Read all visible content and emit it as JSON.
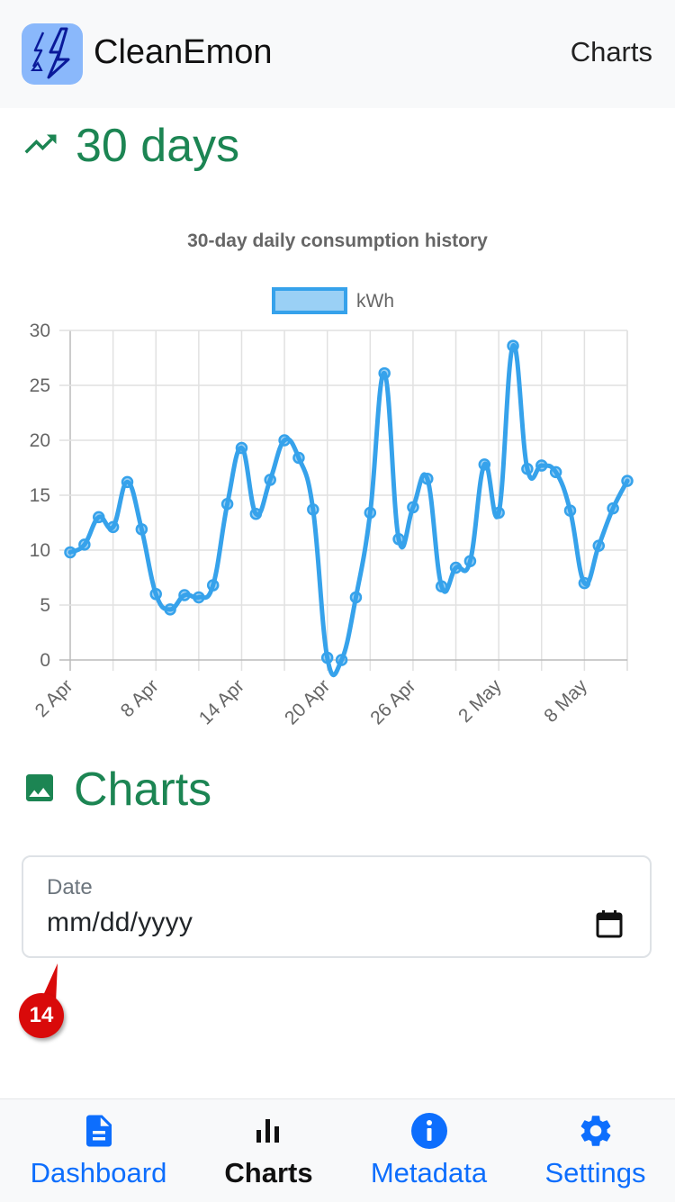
{
  "app": {
    "name": "CleanEmon",
    "current_page": "Charts"
  },
  "sections": {
    "history_title": "30 days",
    "charts_title": "Charts"
  },
  "date_input": {
    "label": "Date",
    "placeholder": "mm/dd/yyyy"
  },
  "annotation": {
    "badge": "14"
  },
  "bottom_nav": [
    {
      "label": "Dashboard",
      "icon": "document-icon",
      "active": false
    },
    {
      "label": "Charts",
      "icon": "bar-chart-icon",
      "active": true
    },
    {
      "label": "Metadata",
      "icon": "info-icon",
      "active": false
    },
    {
      "label": "Settings",
      "icon": "gear-icon",
      "active": false
    }
  ],
  "colors": {
    "accent_green": "#1c8553",
    "nav_blue": "#0d6efd",
    "series_line": "#36a2eb",
    "brand_tile": "#8ab8fb",
    "annotation_red": "#d90a0a"
  },
  "chart_data": {
    "type": "line",
    "title": "30-day daily consumption history",
    "legend": "top-center",
    "xlabel": "",
    "ylabel": "",
    "ylim": [
      0,
      30
    ],
    "yticks": [
      0,
      5,
      10,
      15,
      20,
      25,
      30
    ],
    "grid": true,
    "x": [
      "2 Apr",
      "3 Apr",
      "4 Apr",
      "5 Apr",
      "6 Apr",
      "7 Apr",
      "8 Apr",
      "9 Apr",
      "10 Apr",
      "11 Apr",
      "12 Apr",
      "13 Apr",
      "14 Apr",
      "15 Apr",
      "16 Apr",
      "17 Apr",
      "18 Apr",
      "19 Apr",
      "20 Apr",
      "21 Apr",
      "22 Apr",
      "23 Apr",
      "24 Apr",
      "25 Apr",
      "26 Apr",
      "27 Apr",
      "28 Apr",
      "29 Apr",
      "30 Apr",
      "1 May",
      "2 May",
      "3 May",
      "4 May",
      "5 May",
      "6 May",
      "7 May",
      "8 May",
      "9 May",
      "10 May",
      "11 May"
    ],
    "tick_labels": [
      "2 Apr",
      "8 Apr",
      "14 Apr",
      "20 Apr",
      "26 Apr",
      "2 May",
      "8 May"
    ],
    "series": [
      {
        "name": "kWh",
        "values": [
          9.8,
          10.5,
          13.0,
          12.1,
          16.2,
          11.9,
          6.0,
          4.6,
          5.9,
          5.7,
          6.8,
          14.2,
          19.3,
          13.3,
          16.4,
          20.0,
          18.4,
          13.7,
          0.2,
          0.0,
          5.7,
          13.4,
          26.1,
          11.0,
          13.9,
          16.5,
          6.7,
          8.4,
          9.0,
          17.8,
          13.4,
          28.6,
          17.4,
          17.7,
          17.1,
          13.6,
          7.0,
          10.4,
          13.8,
          16.3
        ]
      }
    ]
  }
}
